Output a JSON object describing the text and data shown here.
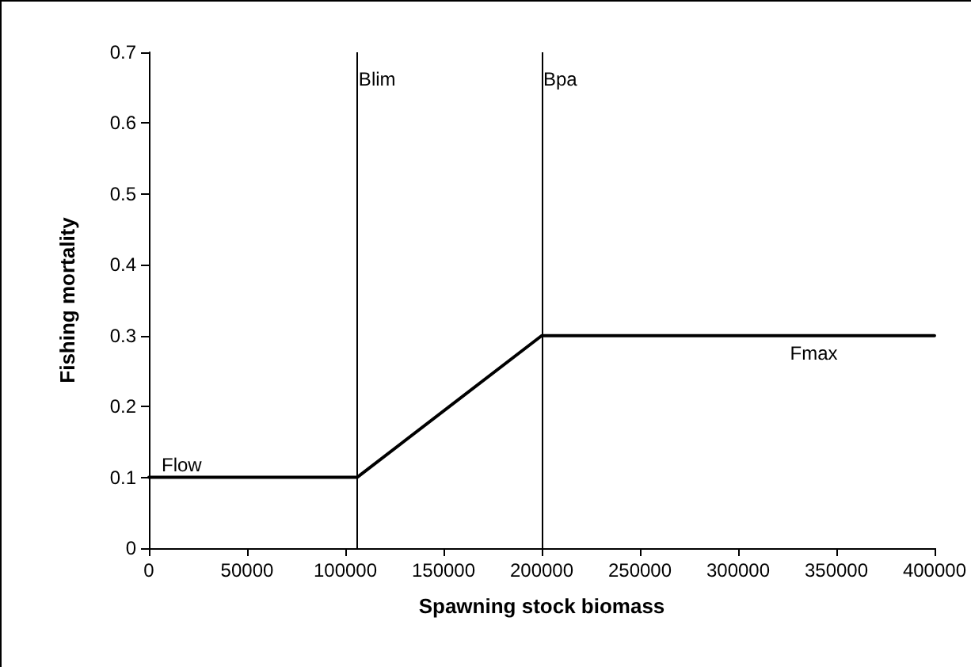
{
  "chart_data": {
    "type": "line",
    "xlabel": "Spawning stock biomass",
    "ylabel": "Fishing mortality",
    "x": [
      0,
      106000,
      200000,
      400000
    ],
    "values": [
      0.1,
      0.1,
      0.3,
      0.3
    ],
    "color": "#000000",
    "xlim": [
      0,
      400000
    ],
    "xticks": [
      0,
      50000,
      100000,
      150000,
      200000,
      250000,
      300000,
      350000,
      400000
    ],
    "ylim": [
      0,
      0.7
    ],
    "yticks": [
      0,
      0.1,
      0.2,
      0.3,
      0.4,
      0.5,
      0.6,
      0.7
    ],
    "ref_lines": [
      {
        "axis": "x",
        "value": 106000,
        "label": "Blim",
        "color": "#000000"
      },
      {
        "axis": "x",
        "value": 200000,
        "label": "Bpa",
        "color": "#000000"
      }
    ],
    "annotations": [
      {
        "text": "Flow",
        "x": 0,
        "y": 0.1
      },
      {
        "text": "Fmax",
        "x": 320000,
        "y": 0.3
      }
    ],
    "grid": false,
    "marker": "none",
    "line_style": "solid"
  }
}
